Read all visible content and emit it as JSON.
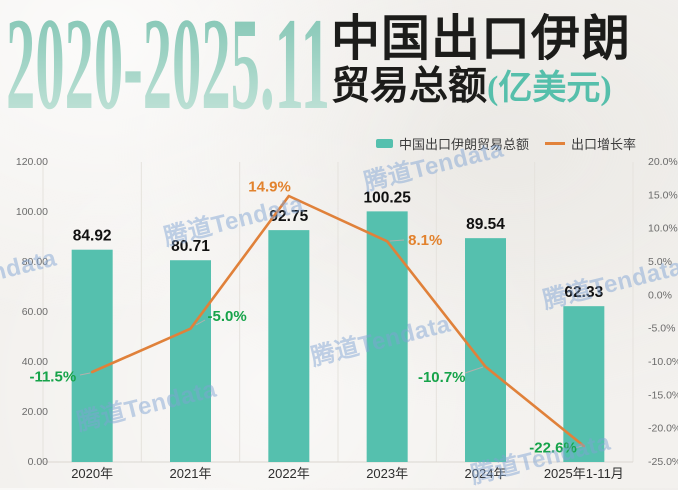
{
  "header": {
    "period": "2020-2025.11",
    "title_line1": "中国出口伊朗",
    "title_line2": "贸易总额",
    "title_unit": "(亿美元)"
  },
  "legend": [
    {
      "label": "中国出口伊朗贸易总额",
      "type": "bar",
      "color": "#55c0ae"
    },
    {
      "label": "出口增长率",
      "type": "line",
      "color": "#e2823a"
    }
  ],
  "watermark": {
    "text": "腾道Tendata"
  },
  "colors": {
    "bar": "#55c0ae",
    "line": "#e0813a",
    "rate_positive": "#e2822d",
    "rate_negative": "#16a34a",
    "title_teal_top": "#79c1af",
    "title_teal_bottom": "#cbe7dd",
    "grid": "#e5e2dd",
    "axis_text": "#6b6b6b",
    "bar_label": "#111111",
    "category_text": "#2e2e2e"
  },
  "chart_data": {
    "type": "bar",
    "categories": [
      "2020年",
      "2021年",
      "2022年",
      "2023年",
      "2024年",
      "2025年1-11月"
    ],
    "series": [
      {
        "name": "中国出口伊朗贸易总额",
        "type": "bar",
        "axis": "left",
        "values": [
          84.92,
          80.71,
          92.75,
          100.25,
          89.54,
          62.33
        ]
      },
      {
        "name": "出口增长率",
        "type": "line",
        "axis": "right",
        "unit": "%",
        "values": [
          -11.5,
          -5.0,
          14.9,
          8.1,
          -10.7,
          -22.6
        ]
      }
    ],
    "bar_labels": [
      "84.92",
      "80.71",
      "92.75",
      "100.25",
      "89.54",
      "62.33"
    ],
    "rate_labels": [
      "-11.5%",
      "-5.0%",
      "14.9%",
      "8.1%",
      "-10.7%",
      "-22.6%"
    ],
    "left_axis": {
      "min": 0,
      "max": 120,
      "ticks": [
        "120.00",
        "100.00",
        "80.00",
        "60.00",
        "40.00",
        "20.00",
        "0.00"
      ]
    },
    "right_axis": {
      "min": -25,
      "max": 20,
      "ticks": [
        "20.0%",
        "15.0%",
        "10.0%",
        "5.0%",
        "0.0%",
        "-5.0%",
        "-10.0%",
        "-15.0%",
        "-20.0%",
        "-25.0%"
      ]
    },
    "grid": "vertical-only",
    "legend_position": "top-right"
  }
}
